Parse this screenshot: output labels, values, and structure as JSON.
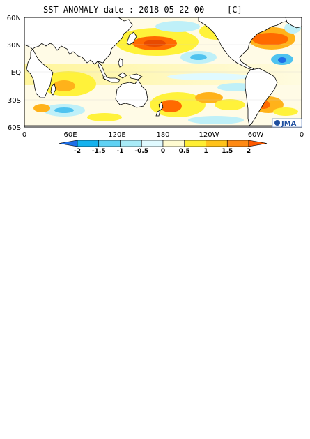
{
  "title": "SST ANOMALY date : 2018 05 22 00",
  "unit": "[C]",
  "lat_labels": [
    "60N",
    "30N",
    "EQ",
    "30S",
    "60S"
  ],
  "lon_labels": [
    "0",
    "60E",
    "120E",
    "180",
    "120W",
    "60W",
    "0"
  ],
  "logo_text": "JMA",
  "colorbar": {
    "labels": [
      "-2",
      "-1.5",
      "-1",
      "-0.5",
      "0",
      "0.5",
      "1",
      "1.5",
      "2"
    ],
    "colors": [
      "#1e6fe8",
      "#14b2ee",
      "#5fd2f4",
      "#a8ebf7",
      "#e0faff",
      "#fffbd0",
      "#ffee33",
      "#ffc21a",
      "#ff8a14",
      "#ff5a00"
    ]
  },
  "colors": {
    "land": "#ffffff",
    "coast": "#000000",
    "warm_strong": "#ff6a00",
    "warm": "#ffb21a",
    "warm_light": "#fff23a",
    "neutral": "#fffbe6",
    "cool_light": "#bff0f8",
    "cool": "#4fc3ef",
    "cool_strong": "#1e6fe8",
    "logo": "#1f4fa0"
  }
}
